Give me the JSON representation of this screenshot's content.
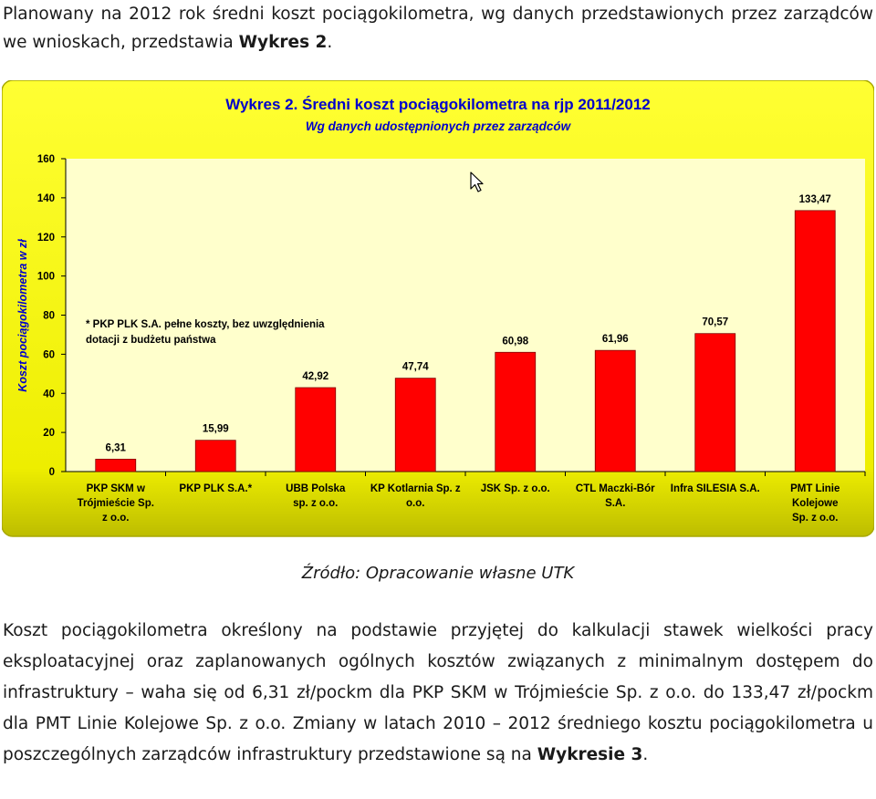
{
  "intro": {
    "text": "Planowany na 2012 rok średni koszt pociągokilometra, wg danych przedstawionych przez zarządców we wnioskach, przedstawia ",
    "bold": "Wykres 2",
    "end": "."
  },
  "chart_data": {
    "type": "bar",
    "title": "Wykres 2. Średni koszt pociągokilometra na rjp 2011/2012",
    "subtitle": "Wg danych udostępnionych przez zarządców",
    "xlabel": "",
    "ylabel": "Koszt pociągokilometra w zł",
    "ylim": [
      0,
      160
    ],
    "yticks": [
      0,
      20,
      40,
      60,
      80,
      100,
      120,
      140,
      160
    ],
    "grid": false,
    "bar_color": "#ff0000",
    "plot_bg": "#ffffcc",
    "frame_bg": "#ffff00",
    "categories": [
      [
        "PKP SKM w",
        "Trójmieście    Sp.",
        "z o.o."
      ],
      [
        "PKP PLK S.A.*"
      ],
      [
        "UBB Polska",
        "sp. z o.o."
      ],
      [
        "KP Kotlarnia Sp. z",
        "o.o."
      ],
      [
        "JSK Sp. z o.o."
      ],
      [
        "CTL Maczki-Bór",
        "S.A."
      ],
      [
        "Infra SILESIA S.A."
      ],
      [
        "PMT Linie",
        "Kolejowe",
        "Sp. z o.o."
      ]
    ],
    "values": [
      6.31,
      15.99,
      42.92,
      47.74,
      60.98,
      61.96,
      70.57,
      133.47
    ],
    "data_labels": [
      "6,31",
      "15,99",
      "42,92",
      "47,74",
      "60,98",
      "61,96",
      "70,57",
      "133,47"
    ],
    "annotation": [
      "* PKP PLK S.A. pełne koszty, bez uwzględnienia",
      "dotacji z budżetu państwa"
    ]
  },
  "source": "Źródło: Opracowanie własne UTK",
  "body": {
    "text": "Koszt pociągokilometra określony na podstawie przyjętej do kalkulacji stawek wielkości pracy eksploatacyjnej oraz zaplanowanych ogólnych kosztów związanych z minimalnym dostępem do infrastruktury – waha się od 6,31 zł/pockm dla PKP SKM w Trójmieście Sp. z o.o. do 133,47 zł/pockm dla PMT Linie Kolejowe Sp. z o.o. Zmiany w latach 2010 – 2012 średniego kosztu pociągokilometra u poszczególnych zarządców infrastruktury przedstawione są na ",
    "bold": "Wykresie 3",
    "end": "."
  }
}
